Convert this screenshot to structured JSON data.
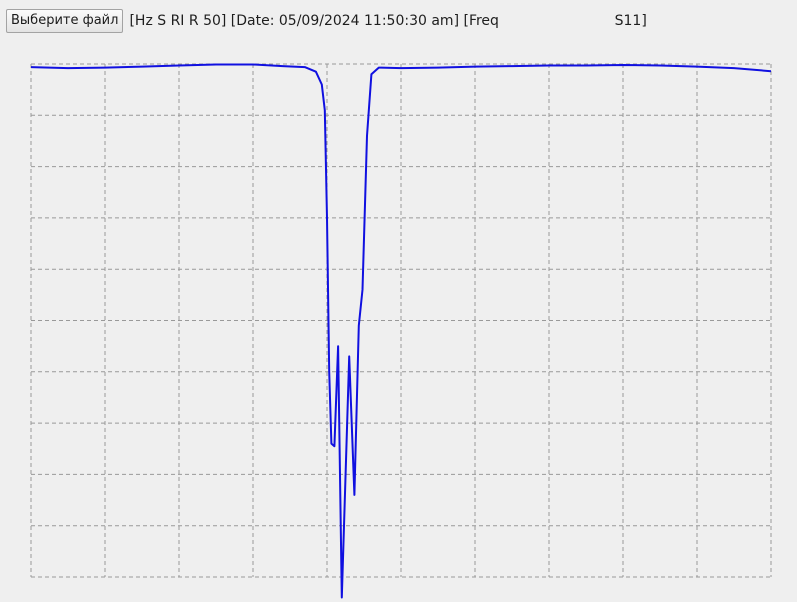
{
  "toolbar": {
    "file_button_label": "Выберите файл",
    "header_text": "[Hz S RI R 50] [Date: 05/09/2024 11:50:30 am] [Freq                          S11]"
  },
  "colors": {
    "trace": "#1010e0",
    "grid": "#999999",
    "background": "#efefef"
  },
  "chart_data": {
    "type": "line",
    "title": "",
    "xlabel": "",
    "ylabel": "",
    "xlim": [
      0,
      10
    ],
    "ylim": [
      -10,
      0
    ],
    "grid": true,
    "grid_style": "dashed",
    "x_divisions": 10,
    "y_divisions": 10,
    "series": [
      {
        "points": [
          [
            0.0,
            -0.06
          ],
          [
            0.5,
            -0.08
          ],
          [
            1.0,
            -0.07
          ],
          [
            1.5,
            -0.05
          ],
          [
            2.0,
            -0.03
          ],
          [
            2.5,
            -0.01
          ],
          [
            3.0,
            -0.01
          ],
          [
            3.4,
            -0.04
          ],
          [
            3.7,
            -0.06
          ],
          [
            3.85,
            -0.15
          ],
          [
            3.93,
            -0.4
          ],
          [
            3.97,
            -0.9
          ],
          [
            4.0,
            -3.0
          ],
          [
            4.03,
            -6.0
          ],
          [
            4.06,
            -7.4
          ],
          [
            4.1,
            -7.45
          ],
          [
            4.15,
            -5.5
          ],
          [
            4.2,
            -10.4
          ],
          [
            4.3,
            -5.7
          ],
          [
            4.37,
            -8.4
          ],
          [
            4.43,
            -5.1
          ],
          [
            4.48,
            -4.4
          ],
          [
            4.54,
            -1.4
          ],
          [
            4.6,
            -0.2
          ],
          [
            4.7,
            -0.07
          ],
          [
            5.0,
            -0.08
          ],
          [
            5.5,
            -0.07
          ],
          [
            6.0,
            -0.05
          ],
          [
            6.5,
            -0.04
          ],
          [
            7.0,
            -0.03
          ],
          [
            7.5,
            -0.03
          ],
          [
            8.0,
            -0.02
          ],
          [
            8.5,
            -0.03
          ],
          [
            9.0,
            -0.05
          ],
          [
            9.5,
            -0.08
          ],
          [
            10.0,
            -0.14
          ]
        ]
      }
    ]
  }
}
